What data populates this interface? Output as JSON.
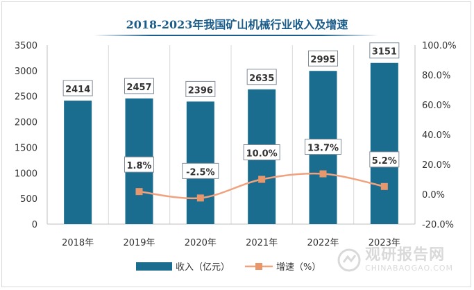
{
  "title": "2018-2023年我国矿山机械行业收入及增速",
  "watermark": {
    "text_cn": "观研报告网",
    "text_en": "CHINABAOGAO.COM"
  },
  "chart_data": {
    "type": "bar",
    "categories": [
      "2018年",
      "2019年",
      "2020年",
      "2021年",
      "2022年",
      "2023年"
    ],
    "series": [
      {
        "name": "收入（亿元）",
        "type": "bar",
        "axis": "left",
        "values": [
          2414,
          2457,
          2396,
          2635,
          2995,
          3151
        ],
        "labels": [
          "2414",
          "2457",
          "2396",
          "2635",
          "2995",
          "3151"
        ]
      },
      {
        "name": "增速（%）",
        "type": "line",
        "axis": "right",
        "values": [
          null,
          1.8,
          -2.5,
          10.0,
          13.7,
          5.2
        ],
        "labels": [
          "",
          "1.8%",
          "-2.5%",
          "10.0%",
          "13.7%",
          "5.2%"
        ]
      }
    ],
    "y_left": {
      "min": 0,
      "max": 3500,
      "ticks": [
        "0",
        "500",
        "1000",
        "1500",
        "2000",
        "2500",
        "3000",
        "3500"
      ]
    },
    "y_right": {
      "min": -20,
      "max": 100,
      "ticks": [
        "-20.0%",
        "0.0%",
        "20.0%",
        "40.0%",
        "60.0%",
        "80.0%",
        "100.0%"
      ]
    },
    "grid": "vertical",
    "legend_position": "bottom",
    "colors": {
      "bar": "#1b6d90",
      "line": "#f0a27f",
      "marker": "#e8966c",
      "title": "#1a5c8a"
    }
  }
}
